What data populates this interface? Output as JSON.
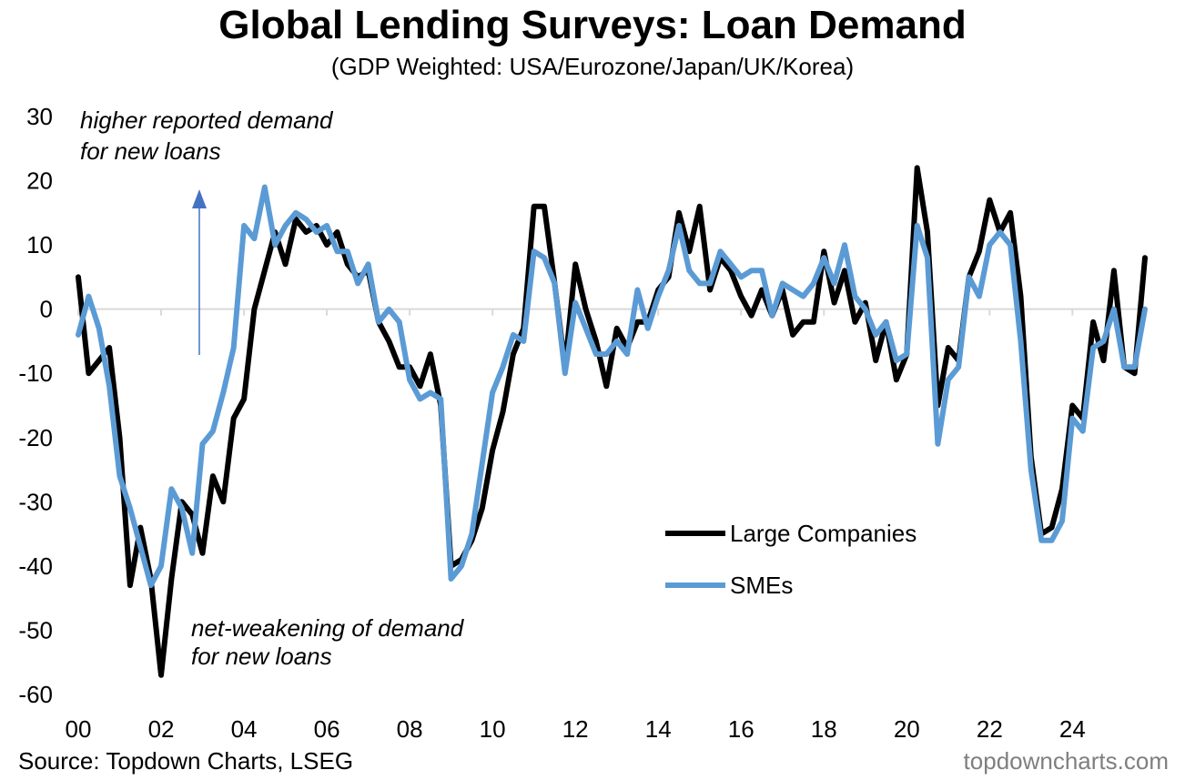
{
  "title": "Global Lending Surveys: Loan Demand",
  "subtitle": "(GDP Weighted: USA/Eurozone/Japan/UK/Korea)",
  "source": "Source: Topdown Charts, LSEG",
  "watermark": "topdowncharts.com",
  "annotations": {
    "upper_line1": "higher reported demand",
    "upper_line2": "for new loans",
    "lower_line1": "net-weakening of demand",
    "lower_line2": "for new loans"
  },
  "colors": {
    "large_companies": "#000000",
    "smes": "#5b9bd5",
    "arrow": "#4472c4",
    "zero_line": "#d9d9d9"
  },
  "chart_data": {
    "type": "line",
    "title": "Global Lending Surveys: Loan Demand",
    "subtitle": "(GDP Weighted: USA/Eurozone/Japan/UK/Korea)",
    "xlabel": "",
    "ylabel": "",
    "xlim": [
      2000,
      2025.75
    ],
    "ylim": [
      -60,
      30
    ],
    "y_ticks": [
      30,
      20,
      10,
      0,
      -10,
      -20,
      -30,
      -40,
      -50,
      -60
    ],
    "x_ticks": [
      "00",
      "02",
      "04",
      "06",
      "08",
      "10",
      "12",
      "14",
      "16",
      "18",
      "20",
      "22",
      "24"
    ],
    "legend_position": "lower-right",
    "grid": false,
    "x": [
      2000.0,
      2000.25,
      2000.5,
      2000.75,
      2001.0,
      2001.25,
      2001.5,
      2001.75,
      2002.0,
      2002.25,
      2002.5,
      2002.75,
      2003.0,
      2003.25,
      2003.5,
      2003.75,
      2004.0,
      2004.25,
      2004.5,
      2004.75,
      2005.0,
      2005.25,
      2005.5,
      2005.75,
      2006.0,
      2006.25,
      2006.5,
      2006.75,
      2007.0,
      2007.25,
      2007.5,
      2007.75,
      2008.0,
      2008.25,
      2008.5,
      2008.75,
      2009.0,
      2009.25,
      2009.5,
      2009.75,
      2010.0,
      2010.25,
      2010.5,
      2010.75,
      2011.0,
      2011.25,
      2011.5,
      2011.75,
      2012.0,
      2012.25,
      2012.5,
      2012.75,
      2013.0,
      2013.25,
      2013.5,
      2013.75,
      2014.0,
      2014.25,
      2014.5,
      2014.75,
      2015.0,
      2015.25,
      2015.5,
      2015.75,
      2016.0,
      2016.25,
      2016.5,
      2016.75,
      2017.0,
      2017.25,
      2017.5,
      2017.75,
      2018.0,
      2018.25,
      2018.5,
      2018.75,
      2019.0,
      2019.25,
      2019.5,
      2019.75,
      2020.0,
      2020.25,
      2020.5,
      2020.75,
      2021.0,
      2021.25,
      2021.5,
      2021.75,
      2022.0,
      2022.25,
      2022.5,
      2022.75,
      2023.0,
      2023.25,
      2023.5,
      2023.75,
      2024.0,
      2024.25,
      2024.5,
      2024.75,
      2025.0,
      2025.25,
      2025.5,
      2025.75
    ],
    "series": [
      {
        "name": "Large Companies",
        "values": [
          5,
          -10,
          -8,
          -6,
          -20,
          -43,
          -34,
          -42,
          -57,
          -42,
          -30,
          -32,
          -38,
          -26,
          -30,
          -17,
          -14,
          0,
          6,
          12,
          7,
          14,
          12,
          13,
          10,
          12,
          7,
          5,
          6,
          -2,
          -5,
          -9,
          -9,
          -12,
          -7,
          -15,
          -40,
          -39,
          -36,
          -31,
          -22,
          -16,
          -7,
          -3,
          16,
          16,
          4,
          -9,
          7,
          0,
          -5,
          -12,
          -3,
          -6,
          -2,
          -2,
          3,
          5,
          15,
          9,
          16,
          3,
          8,
          6,
          2,
          -1,
          3,
          -1,
          3,
          -4,
          -2,
          -2,
          9,
          1,
          6,
          -2,
          1,
          -8,
          -2,
          -11,
          -7,
          22,
          12,
          -15,
          -6,
          -8,
          5,
          9,
          17,
          12,
          15,
          2,
          -23,
          -35,
          -34,
          -28,
          -15,
          -17,
          -2,
          -8,
          6,
          -9,
          -10,
          8
        ]
      },
      {
        "name": "SMEs",
        "values": [
          -4,
          2,
          -3,
          -12,
          -26,
          -31,
          -37,
          -43,
          -40,
          -28,
          -31,
          -38,
          -21,
          -19,
          -13,
          -6,
          13,
          11,
          19,
          10,
          13,
          15,
          14,
          12,
          13,
          9,
          9,
          4,
          7,
          -2,
          0,
          -2,
          -11,
          -14,
          -13,
          -14,
          -42,
          -40,
          -35,
          -24,
          -13,
          -9,
          -4,
          -5,
          9,
          8,
          4,
          -10,
          1,
          -3,
          -7,
          -7,
          -5,
          -7,
          3,
          -3,
          2,
          6,
          13,
          6,
          4,
          4,
          9,
          7,
          5,
          6,
          6,
          -1,
          4,
          3,
          2,
          4,
          8,
          4,
          10,
          2,
          0,
          -4,
          -2,
          -8,
          -7,
          13,
          8,
          -21,
          -11,
          -9,
          5,
          2,
          10,
          12,
          10,
          -5,
          -25,
          -36,
          -36,
          -33,
          -17,
          -19,
          -6,
          -5,
          0,
          -9,
          -9,
          0
        ]
      }
    ]
  }
}
